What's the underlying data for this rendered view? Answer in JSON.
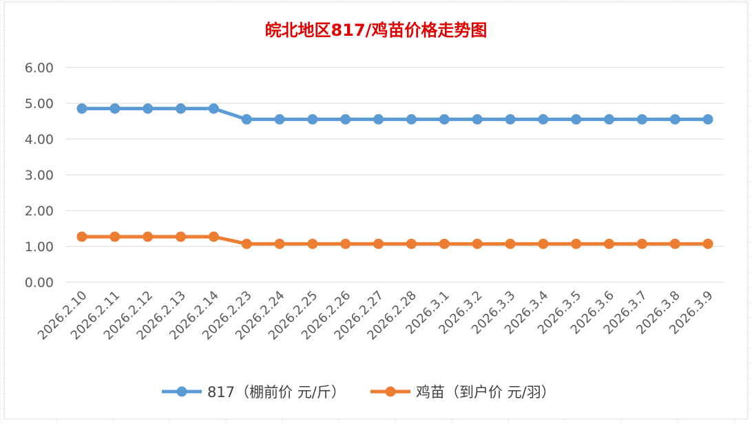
{
  "chart_data": {
    "type": "line",
    "title": "皖北地区817/鸡苗价格走势图",
    "categories": [
      "2026.2.10",
      "2026.2.11",
      "2026.2.12",
      "2026.2.13",
      "2026.2.14",
      "2026.2.23",
      "2026.2.24",
      "2026.2.25",
      "2026.2.26",
      "2026.2.27",
      "2026.2.28",
      "2026.3.1",
      "2026.3.2",
      "2026.3.3",
      "2026.3.4",
      "2026.3.5",
      "2026.3.6",
      "2026.3.7",
      "2026.3.8",
      "2026.3.9"
    ],
    "y_ticks": [
      "0.00",
      "1.00",
      "2.00",
      "3.00",
      "4.00",
      "5.00",
      "6.00"
    ],
    "ylim": [
      0,
      6
    ],
    "grid": true,
    "legend_position": "bottom",
    "series": [
      {
        "name": "817（棚前价 元/斤）",
        "color": "#5B9BD5",
        "values": [
          4.85,
          4.85,
          4.85,
          4.85,
          4.85,
          4.55,
          4.55,
          4.55,
          4.55,
          4.55,
          4.55,
          4.55,
          4.55,
          4.55,
          4.55,
          4.55,
          4.55,
          4.55,
          4.55,
          4.55
        ]
      },
      {
        "name": "鸡苗（到户价 元/羽）",
        "color": "#ED7D31",
        "values": [
          1.27,
          1.27,
          1.27,
          1.27,
          1.27,
          1.07,
          1.07,
          1.07,
          1.07,
          1.07,
          1.07,
          1.07,
          1.07,
          1.07,
          1.07,
          1.07,
          1.07,
          1.07,
          1.07,
          1.07
        ]
      }
    ]
  }
}
